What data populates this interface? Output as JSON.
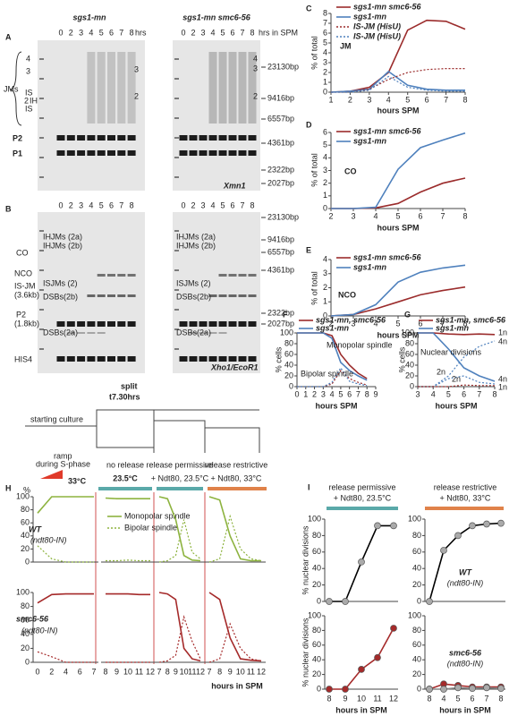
{
  "gels": {
    "A": {
      "label": "A",
      "strain_left": "sgs1-mn",
      "strain_right": "sgs1-mn smc6-56",
      "lanes_left": [
        "0",
        "2",
        "3",
        "4",
        "5",
        "6",
        "7",
        "8",
        "hrs"
      ],
      "lanes_right": [
        "0",
        "2",
        "3",
        "4",
        "5",
        "6",
        "7",
        "8",
        "hrs in SPM"
      ],
      "side_labels": [
        "JMs",
        "P2",
        "P1"
      ],
      "jm_species_left": [
        "4",
        "3",
        "IS",
        "2",
        "IH",
        "IS"
      ],
      "jm_left_gel": [
        "3",
        "2"
      ],
      "jm_right_gel": [
        "4",
        "3",
        "2"
      ],
      "markers": [
        "23130bp",
        "9416bp",
        "6557bp",
        "4361bp",
        "2322bp",
        "2027bp"
      ],
      "enzyme": "Xmn1"
    },
    "B": {
      "label": "B",
      "lanes_left": [
        "0",
        "2",
        "3",
        "4",
        "5",
        "6",
        "7",
        "8"
      ],
      "lanes_right": [
        "0",
        "2",
        "3",
        "4",
        "5",
        "6",
        "7",
        "8"
      ],
      "side_labels": [
        "CO",
        "NCO",
        "IS-JM",
        "(3.6kb)",
        "P2",
        "(1.8kb)",
        "HIS4"
      ],
      "species_left": [
        "IHJMs (2a)",
        "IHJMs (2b)",
        "ISJMs (2)",
        "DSBs(2b)",
        "DSBs(2a)"
      ],
      "species_right": [
        "IHJMs (2a)",
        "IHJMs (2b)",
        "ISJMs (2)",
        "DSBs(2b)",
        "DSBs(2a)"
      ],
      "markers": [
        "23130bp",
        "9416bp",
        "6557bp",
        "4361bp",
        "2322bp",
        "2027bp"
      ],
      "enzyme": "Xho1/EcoR1"
    }
  },
  "timeline": {
    "split": "split",
    "time": "t7.30hrs",
    "start": "starting culture",
    "ramp": [
      "ramp",
      "during S-phase"
    ],
    "ramp_temp": "33°C",
    "no_release": "no release",
    "no_release_temp": "23.5°C",
    "permissive": [
      "release permissive",
      "+ Ndt80, 23.5°C"
    ],
    "restrictive": [
      "release restrictive",
      "+ Ndt80, 33°C"
    ]
  },
  "chart_data": [
    {
      "type": "line",
      "label": "C",
      "ylabel": "% of total",
      "xlabel": "hours SPM",
      "annotations": [
        "JM"
      ],
      "x": [
        1,
        2,
        3,
        4,
        5,
        6,
        7,
        8
      ],
      "xlim": [
        1,
        8
      ],
      "xticks": [
        1,
        2,
        3,
        4,
        5,
        6,
        7,
        8
      ],
      "ylim": [
        0,
        8
      ],
      "yticks": [
        0,
        1,
        2,
        3,
        4,
        5,
        6,
        7,
        8
      ],
      "series": [
        {
          "name": "sgs1-mn smc6-56",
          "color": "#9b2c2c",
          "values": [
            0,
            0.1,
            0.5,
            2.0,
            6.3,
            7.3,
            7.2,
            6.4
          ]
        },
        {
          "name": "sgs1-mn",
          "color": "#4f81bd",
          "values": [
            0,
            0.1,
            0.3,
            2.1,
            0.7,
            0.3,
            0.2,
            0.2
          ]
        },
        {
          "name": "IS-JM (HisU)",
          "color": "#9b2c2c",
          "dash": true,
          "values": [
            0,
            0,
            0.3,
            1.3,
            2.0,
            2.3,
            2.4,
            2.4
          ]
        },
        {
          "name": "IS-JM (HisU)",
          "color": "#4f81bd",
          "dash": true,
          "values": [
            0,
            0,
            0.2,
            1.6,
            0.5,
            0.2,
            0.1,
            0.1
          ]
        }
      ]
    },
    {
      "type": "line",
      "label": "D",
      "ylabel": "% of total",
      "xlabel": "hours SPM",
      "annotations": [
        "CO"
      ],
      "x": [
        2,
        3,
        4,
        5,
        6,
        7,
        8
      ],
      "xlim": [
        2,
        8
      ],
      "xticks": [
        2,
        3,
        4,
        5,
        6,
        7,
        8
      ],
      "ylim": [
        0,
        6
      ],
      "yticks": [
        0,
        1,
        2,
        3,
        4,
        5,
        6
      ],
      "series": [
        {
          "name": "sgs1-mn smc6-56",
          "color": "#9b2c2c",
          "values": [
            0,
            0,
            0.05,
            0.4,
            1.3,
            2.0,
            2.4
          ]
        },
        {
          "name": "sgs1-mn",
          "color": "#4f81bd",
          "values": [
            0,
            0,
            0.1,
            3.1,
            4.8,
            5.4,
            5.95
          ]
        }
      ]
    },
    {
      "type": "line",
      "label": "E",
      "ylabel": "% of total",
      "xlabel": "hours SPM",
      "annotations": [
        "NCO"
      ],
      "x": [
        2,
        3,
        4,
        5,
        6,
        7,
        8
      ],
      "xlim": [
        2,
        8
      ],
      "xticks": [
        2,
        3,
        4,
        5,
        6,
        7,
        8
      ],
      "ylim": [
        0,
        4
      ],
      "yticks": [
        0,
        1,
        2,
        3,
        4
      ],
      "series": [
        {
          "name": "sgs1-mn smc6-56",
          "color": "#9b2c2c",
          "values": [
            0,
            0.1,
            0.5,
            1.0,
            1.5,
            1.8,
            2.05
          ]
        },
        {
          "name": "sgs1-mn",
          "color": "#4f81bd",
          "values": [
            0,
            0.1,
            0.8,
            2.4,
            3.1,
            3.4,
            3.6
          ]
        }
      ]
    },
    {
      "type": "line",
      "label": "F",
      "ylabel": "% cells",
      "xlabel": "hours SPM",
      "annotations": [
        "Monopolar spindle",
        "Bipolar spindle"
      ],
      "x": [
        0,
        1,
        2,
        3,
        4,
        5,
        6,
        7,
        8
      ],
      "xlim": [
        0,
        9
      ],
      "xticks": [
        0,
        1,
        2,
        3,
        4,
        5,
        6,
        7,
        8,
        9
      ],
      "ylim": [
        0,
        100
      ],
      "yticks": [
        0,
        20,
        40,
        60,
        80,
        100
      ],
      "series": [
        {
          "name": "sgs1-mn, smc6-56",
          "color": "#9b2c2c",
          "values": [
            100,
            100,
            100,
            100,
            95,
            60,
            40,
            25,
            15
          ]
        },
        {
          "name": "sgs1-mn",
          "color": "#4f81bd",
          "values": [
            100,
            100,
            100,
            100,
            90,
            45,
            30,
            20,
            12
          ]
        },
        {
          "color": "#9b2c2c",
          "dash": true,
          "values": [
            0,
            0,
            0,
            0,
            5,
            30,
            15,
            8,
            3
          ]
        },
        {
          "color": "#4f81bd",
          "dash": true,
          "values": [
            0,
            0,
            0,
            0,
            8,
            35,
            10,
            5,
            2
          ]
        }
      ]
    },
    {
      "type": "line",
      "label": "G",
      "ylabel": "% cells",
      "xlabel": "hours SPM",
      "annotations": [
        "Nuclear divisions",
        "1n",
        "4n",
        "2n",
        "2n",
        "4n",
        "1n"
      ],
      "x": [
        3,
        4,
        5,
        6,
        7,
        8
      ],
      "xlim": [
        3,
        8
      ],
      "xticks": [
        3,
        4,
        5,
        6,
        7,
        8
      ],
      "ylim": [
        0,
        100
      ],
      "yticks": [
        0,
        20,
        40,
        60,
        80,
        100
      ],
      "series": [
        {
          "name": "sgs1-mn, smc6-56",
          "color": "#9b2c2c",
          "values": [
            100,
            100,
            98,
            97,
            98,
            97
          ]
        },
        {
          "name": "sgs1-mn",
          "color": "#4f81bd",
          "values": [
            100,
            100,
            70,
            35,
            20,
            10
          ]
        },
        {
          "color": "#4f81bd",
          "dash": true,
          "values": [
            0,
            0,
            20,
            55,
            75,
            85
          ]
        },
        {
          "color": "#4f81bd",
          "dash": true,
          "values": [
            0,
            0,
            15,
            20,
            8,
            5
          ]
        },
        {
          "color": "#9b2c2c",
          "dash": true,
          "values": [
            0,
            0,
            0,
            3,
            2,
            2
          ]
        }
      ]
    },
    {
      "type": "line",
      "label": "H",
      "ylabel": "%",
      "annotations": [
        "WT",
        "(ndt80-IN)"
      ],
      "categories": [
        null,
        null,
        null,
        null,
        null
      ],
      "ylim": [
        0,
        100
      ],
      "yticks": [
        0,
        20,
        40,
        60,
        80,
        100
      ],
      "series": [
        {
          "name": "Monopolar spindle",
          "color": "#8db33f",
          "values": [
            75,
            100,
            100,
            100,
            100
          ]
        },
        {
          "name": "Bipolar spindle",
          "color": "#8db33f",
          "dash": true,
          "values": [
            25,
            5,
            0,
            0,
            0
          ]
        }
      ]
    },
    {
      "type": "line",
      "categories": [
        null,
        null,
        null,
        null,
        null
      ],
      "ylim": [
        0,
        100
      ],
      "series": [
        {
          "color": "#8db33f",
          "values": [
            98,
            97,
            97,
            97,
            97
          ]
        },
        {
          "color": "#8db33f",
          "dash": true,
          "values": [
            2,
            2,
            3,
            2,
            2
          ]
        }
      ]
    },
    {
      "type": "line",
      "categories": [
        null,
        null,
        null,
        null,
        null,
        null
      ],
      "ylim": [
        0,
        100
      ],
      "series": [
        {
          "color": "#8db33f",
          "values": [
            100,
            97,
            65,
            10,
            3,
            2
          ]
        },
        {
          "color": "#8db33f",
          "dash": true,
          "values": [
            0,
            2,
            10,
            65,
            15,
            5
          ]
        }
      ]
    },
    {
      "type": "line",
      "categories": [
        null,
        null,
        null,
        null,
        null,
        null
      ],
      "ylim": [
        0,
        100
      ],
      "series": [
        {
          "color": "#8db33f",
          "values": [
            100,
            95,
            40,
            5,
            2,
            2
          ]
        },
        {
          "color": "#8db33f",
          "dash": true,
          "values": [
            0,
            5,
            70,
            20,
            5,
            2
          ]
        }
      ]
    },
    {
      "type": "line",
      "annotations": [
        "smc6-56",
        "(ndt80-IN)"
      ],
      "categories": [
        "0",
        "2",
        "4",
        "6",
        "7"
      ],
      "ylim": [
        0,
        100
      ],
      "yticks": [
        0,
        20,
        40,
        60,
        80,
        100
      ],
      "series": [
        {
          "color": "#a52a2a",
          "values": [
            85,
            97,
            98,
            98,
            98
          ]
        },
        {
          "color": "#a52a2a",
          "dash": true,
          "values": [
            15,
            8,
            0,
            0,
            0
          ]
        }
      ]
    },
    {
      "type": "line",
      "categories": [
        "8",
        "9",
        "10",
        "11",
        "12"
      ],
      "ylim": [
        0,
        100
      ],
      "series": [
        {
          "color": "#a52a2a",
          "values": [
            98,
            98,
            98,
            97,
            97
          ]
        },
        {
          "color": "#a52a2a",
          "dash": true,
          "values": [
            0,
            0,
            0,
            0,
            0
          ]
        }
      ]
    },
    {
      "type": "line",
      "categories": [
        "7",
        "8",
        "9",
        "10",
        "11",
        "12"
      ],
      "ylim": [
        0,
        100
      ],
      "series": [
        {
          "color": "#a52a2a",
          "values": [
            100,
            98,
            90,
            20,
            5,
            2
          ]
        },
        {
          "color": "#a52a2a",
          "dash": true,
          "values": [
            0,
            2,
            10,
            65,
            30,
            5
          ]
        }
      ]
    },
    {
      "type": "line",
      "xlabel": "hours in SPM",
      "categories": [
        "7",
        "8",
        "9",
        "10",
        "11",
        "12"
      ],
      "ylim": [
        0,
        100
      ],
      "series": [
        {
          "color": "#a52a2a",
          "values": [
            100,
            90,
            35,
            5,
            3,
            2
          ]
        },
        {
          "color": "#a52a2a",
          "dash": true,
          "values": [
            0,
            5,
            55,
            20,
            5,
            2
          ]
        }
      ]
    },
    {
      "type": "line",
      "label": "I",
      "title": "release permissive",
      "subtitle": "+ Ndt80, 23.5°C",
      "ylabel": "% nuclear divisions",
      "categories": [
        null,
        null,
        null,
        null,
        null
      ],
      "ylim": [
        0,
        100
      ],
      "yticks": [
        0,
        20,
        40,
        60,
        80,
        100
      ],
      "series": [
        {
          "color": "#000000",
          "marker": "circle",
          "marker_color": "#aaaaaa",
          "values": [
            0,
            0,
            48,
            92,
            92
          ]
        }
      ]
    },
    {
      "type": "line",
      "title": "release restrictive",
      "subtitle": "+ Ndt80, 33°C",
      "annotations": [
        "WT",
        "(ndt80-IN)"
      ],
      "categories": [
        null,
        null,
        null,
        null,
        null,
        null
      ],
      "ylim": [
        0,
        100
      ],
      "yticks": [
        0,
        20,
        40,
        60,
        80,
        100
      ],
      "series": [
        {
          "color": "#000000",
          "marker": "circle",
          "marker_color": "#aaaaaa",
          "values": [
            0,
            62,
            80,
            92,
            94,
            95
          ]
        }
      ]
    },
    {
      "type": "line",
      "ylabel": "% nuclear divisions",
      "xlabel": "hours in SPM",
      "categories": [
        "8",
        "9",
        "10",
        "11",
        "12"
      ],
      "ylim": [
        0,
        100
      ],
      "yticks": [
        0,
        20,
        40,
        60,
        80,
        100
      ],
      "series": [
        {
          "color": "#a52a2a",
          "marker": "circle",
          "marker_color": "#a52a2a",
          "values": [
            0,
            0,
            27,
            43,
            83
          ]
        }
      ]
    },
    {
      "type": "line",
      "xlabel": "hours in SPM",
      "annotations": [
        "smc6-56",
        "(ndt80-IN)"
      ],
      "categories": [
        "8",
        "4",
        "5",
        "6",
        "7",
        "8"
      ],
      "ylim": [
        0,
        100
      ],
      "yticks": [
        0,
        20,
        40,
        60,
        80,
        100
      ],
      "series": [
        {
          "color": "#a52a2a",
          "marker": "circle",
          "marker_color": "#a52a2a",
          "values": [
            0,
            7,
            5,
            3,
            3,
            3
          ]
        },
        {
          "color": "#888888",
          "marker": "circle",
          "marker_color": "#aaaaaa",
          "values": [
            0,
            0,
            2,
            1,
            2,
            1
          ]
        }
      ]
    }
  ]
}
